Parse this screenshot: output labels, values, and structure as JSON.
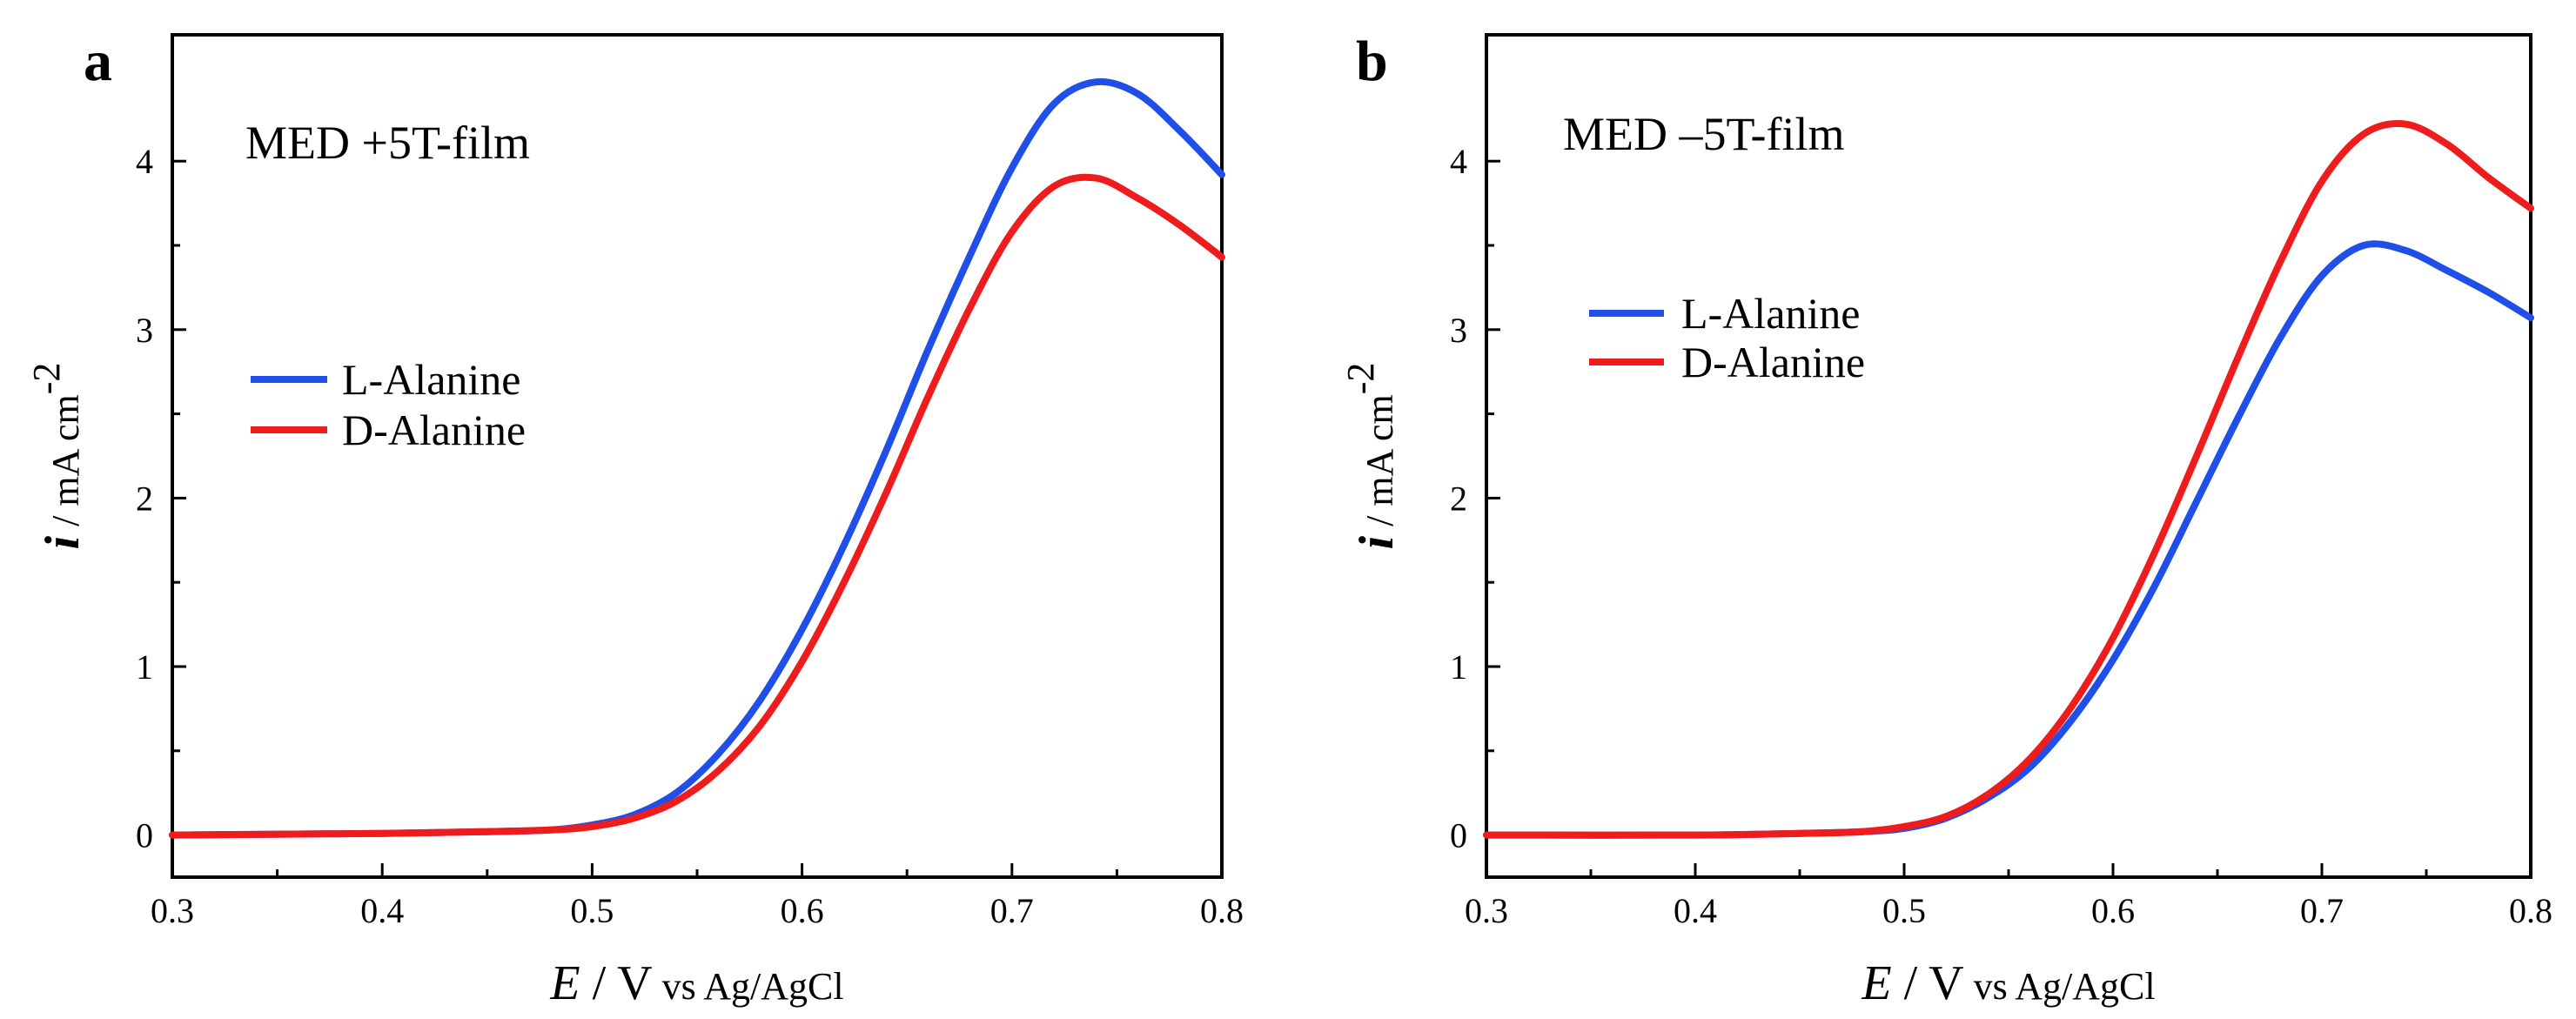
{
  "chart_data": [
    {
      "type": "line",
      "panel_label": "a",
      "title": "MED +5T-film",
      "xlabel": {
        "var": "E",
        "unit": " / V",
        "ref": " vs Ag/AgCl"
      },
      "ylabel": {
        "var": "i",
        "unit": " / mA cm",
        "exp": "-2"
      },
      "xlim": [
        0.3,
        0.8
      ],
      "ylim": [
        -0.25,
        4.75
      ],
      "xticks": [
        0.3,
        0.4,
        0.5,
        0.6,
        0.7,
        0.8
      ],
      "xtick_labels": [
        "0.3",
        "0.4",
        "0.5",
        "0.6",
        "0.7",
        "0.8"
      ],
      "yticks": [
        0,
        1,
        2,
        3,
        4
      ],
      "ytick_labels": [
        "0",
        "1",
        "2",
        "3",
        "4"
      ],
      "series": [
        {
          "name": "L-Alanine",
          "color": "#1f4fe8",
          "x": [
            0.3,
            0.4,
            0.45,
            0.48,
            0.5,
            0.52,
            0.54,
            0.56,
            0.58,
            0.6,
            0.62,
            0.64,
            0.66,
            0.68,
            0.7,
            0.72,
            0.74,
            0.76,
            0.78,
            0.8
          ],
          "y": [
            0.0,
            0.01,
            0.02,
            0.03,
            0.06,
            0.12,
            0.25,
            0.48,
            0.8,
            1.22,
            1.72,
            2.28,
            2.88,
            3.44,
            3.96,
            4.34,
            4.47,
            4.4,
            4.18,
            3.92
          ]
        },
        {
          "name": "D-Alanine",
          "color": "#ee1c1c",
          "x": [
            0.3,
            0.4,
            0.45,
            0.48,
            0.5,
            0.52,
            0.54,
            0.56,
            0.58,
            0.6,
            0.62,
            0.64,
            0.66,
            0.68,
            0.7,
            0.72,
            0.74,
            0.76,
            0.78,
            0.8
          ],
          "y": [
            0.0,
            0.01,
            0.02,
            0.03,
            0.05,
            0.1,
            0.2,
            0.38,
            0.65,
            1.03,
            1.5,
            2.03,
            2.6,
            3.13,
            3.58,
            3.85,
            3.9,
            3.78,
            3.62,
            3.43
          ]
        }
      ],
      "legend": "center-left"
    },
    {
      "type": "line",
      "panel_label": "b",
      "title": "MED –5T-film",
      "xlabel": {
        "var": "E",
        "unit": " / V",
        "ref": " vs Ag/AgCl"
      },
      "ylabel": {
        "var": "i",
        "unit": " / mA cm",
        "exp": "-2"
      },
      "xlim": [
        0.3,
        0.8
      ],
      "ylim": [
        -0.25,
        4.75
      ],
      "xticks": [
        0.3,
        0.4,
        0.5,
        0.6,
        0.7,
        0.8
      ],
      "xtick_labels": [
        "0.3",
        "0.4",
        "0.5",
        "0.6",
        "0.7",
        "0.8"
      ],
      "yticks": [
        0,
        1,
        2,
        3,
        4
      ],
      "ytick_labels": [
        "0",
        "1",
        "2",
        "3",
        "4"
      ],
      "series": [
        {
          "name": "L-Alanine",
          "color": "#1f4fe8",
          "x": [
            0.3,
            0.4,
            0.45,
            0.48,
            0.5,
            0.52,
            0.54,
            0.56,
            0.58,
            0.6,
            0.62,
            0.64,
            0.66,
            0.68,
            0.7,
            0.72,
            0.74,
            0.76,
            0.78,
            0.8
          ],
          "y": [
            0.0,
            0.0,
            0.01,
            0.02,
            0.04,
            0.1,
            0.22,
            0.4,
            0.68,
            1.04,
            1.48,
            1.98,
            2.48,
            2.95,
            3.32,
            3.5,
            3.47,
            3.35,
            3.22,
            3.07
          ]
        },
        {
          "name": "D-Alanine",
          "color": "#ee1c1c",
          "x": [
            0.3,
            0.4,
            0.45,
            0.48,
            0.5,
            0.52,
            0.54,
            0.56,
            0.58,
            0.6,
            0.62,
            0.64,
            0.66,
            0.68,
            0.7,
            0.72,
            0.74,
            0.76,
            0.78,
            0.8
          ],
          "y": [
            0.0,
            0.0,
            0.01,
            0.02,
            0.05,
            0.11,
            0.24,
            0.45,
            0.76,
            1.17,
            1.68,
            2.25,
            2.84,
            3.4,
            3.88,
            4.16,
            4.22,
            4.1,
            3.9,
            3.72
          ]
        }
      ],
      "legend": "center-left"
    }
  ]
}
